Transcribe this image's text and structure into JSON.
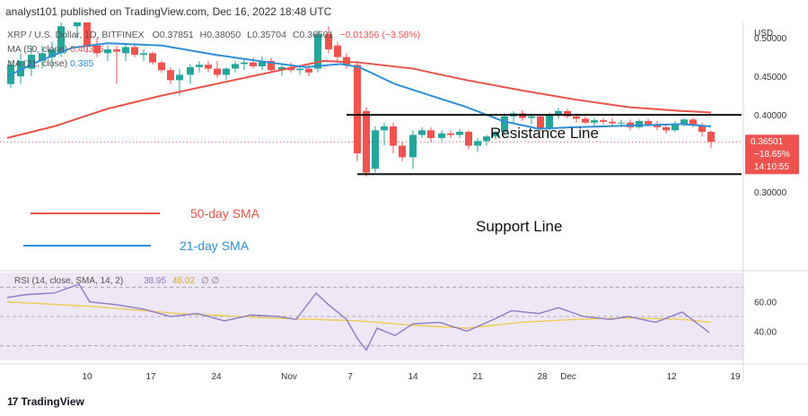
{
  "header": {
    "publish_line": "analyst101 published on TradingView.com, Dec 16, 2022 18:48 UTC"
  },
  "symbol_line": {
    "symbol": "XRP / U.S. Dollar, 1D, BITFINEX",
    "open": "O0.37851",
    "high": "H0.38050",
    "low": "L0.35704",
    "close": "C0.36501",
    "change": "−0.01356 (−3.58%)"
  },
  "ma_lines": [
    {
      "label": "MA (50, close)",
      "value": "0.40335"
    },
    {
      "label": "MA (21, close)",
      "value": "0.385"
    }
  ],
  "price_axis": {
    "currency": "USD",
    "ticks": [
      "0.50000",
      "0.45000",
      "0.40000",
      "0.30000"
    ],
    "last_price": "0.36501",
    "last_change": "−18.65%",
    "countdown": "14:10:55"
  },
  "rsi_panel": {
    "label": "RSI (14, close, SMA, 14, 2)",
    "rsi_value": "38.95",
    "sma_value": "46.02",
    "extra": "∅ ∅",
    "ticks": [
      "60.00",
      "40.00"
    ]
  },
  "time_axis": {
    "ticks": [
      "10",
      "17",
      "24",
      "Nov",
      "7",
      "14",
      "21",
      "28",
      "Dec",
      "12",
      "19"
    ]
  },
  "annotations": {
    "resistance": "Resistance Line",
    "support": "Support Line",
    "sma50_label": "50-day SMA",
    "sma21_label": "21-day SMA"
  },
  "footer": {
    "brand": "TradingView"
  },
  "colors": {
    "up": "#26a69a",
    "down": "#ef5350",
    "sma50": "#e8534a",
    "sma21": "#2e8fd6",
    "rsi": "#8e7cc3",
    "rsi_sma": "#f0c94a",
    "rsi_band": "#ede7f6"
  },
  "chart_data": {
    "type": "candlestick",
    "y_range": [
      0.2,
      0.52
    ],
    "rsi_range": [
      20,
      80
    ],
    "candles": [
      {
        "x": 12,
        "o": 0.44,
        "h": 0.47,
        "l": 0.435,
        "c": 0.465
      },
      {
        "x": 23,
        "o": 0.45,
        "h": 0.48,
        "l": 0.44,
        "c": 0.47
      },
      {
        "x": 35,
        "o": 0.46,
        "h": 0.49,
        "l": 0.45,
        "c": 0.478
      },
      {
        "x": 47,
        "o": 0.47,
        "h": 0.49,
        "l": 0.46,
        "c": 0.48
      },
      {
        "x": 58,
        "o": 0.475,
        "h": 0.495,
        "l": 0.46,
        "c": 0.485
      },
      {
        "x": 68,
        "o": 0.48,
        "h": 0.52,
        "l": 0.475,
        "c": 0.515
      },
      {
        "x": 86,
        "o": 0.515,
        "h": 0.54,
        "l": 0.5,
        "c": 0.53
      },
      {
        "x": 97,
        "o": 0.52,
        "h": 0.53,
        "l": 0.48,
        "c": 0.49
      },
      {
        "x": 108,
        "o": 0.49,
        "h": 0.5,
        "l": 0.475,
        "c": 0.48
      },
      {
        "x": 120,
        "o": 0.48,
        "h": 0.49,
        "l": 0.47,
        "c": 0.485
      },
      {
        "x": 130,
        "o": 0.485,
        "h": 0.49,
        "l": 0.44,
        "c": 0.482
      },
      {
        "x": 140,
        "o": 0.48,
        "h": 0.492,
        "l": 0.47,
        "c": 0.488
      },
      {
        "x": 150,
        "o": 0.488,
        "h": 0.492,
        "l": 0.475,
        "c": 0.478
      },
      {
        "x": 160,
        "o": 0.478,
        "h": 0.485,
        "l": 0.47,
        "c": 0.48
      },
      {
        "x": 170,
        "o": 0.48,
        "h": 0.482,
        "l": 0.465,
        "c": 0.468
      },
      {
        "x": 180,
        "o": 0.468,
        "h": 0.47,
        "l": 0.455,
        "c": 0.458
      },
      {
        "x": 190,
        "o": 0.458,
        "h": 0.462,
        "l": 0.44,
        "c": 0.445
      },
      {
        "x": 200,
        "o": 0.445,
        "h": 0.46,
        "l": 0.425,
        "c": 0.452
      },
      {
        "x": 212,
        "o": 0.452,
        "h": 0.466,
        "l": 0.44,
        "c": 0.462
      },
      {
        "x": 222,
        "o": 0.462,
        "h": 0.47,
        "l": 0.455,
        "c": 0.465
      },
      {
        "x": 232,
        "o": 0.465,
        "h": 0.47,
        "l": 0.455,
        "c": 0.46
      },
      {
        "x": 242,
        "o": 0.46,
        "h": 0.47,
        "l": 0.448,
        "c": 0.452
      },
      {
        "x": 252,
        "o": 0.452,
        "h": 0.462,
        "l": 0.445,
        "c": 0.46
      },
      {
        "x": 262,
        "o": 0.46,
        "h": 0.47,
        "l": 0.455,
        "c": 0.466
      },
      {
        "x": 272,
        "o": 0.466,
        "h": 0.472,
        "l": 0.458,
        "c": 0.468
      },
      {
        "x": 282,
        "o": 0.468,
        "h": 0.474,
        "l": 0.46,
        "c": 0.463
      },
      {
        "x": 292,
        "o": 0.463,
        "h": 0.476,
        "l": 0.458,
        "c": 0.47
      },
      {
        "x": 302,
        "o": 0.47,
        "h": 0.474,
        "l": 0.455,
        "c": 0.458
      },
      {
        "x": 314,
        "o": 0.458,
        "h": 0.465,
        "l": 0.45,
        "c": 0.462
      },
      {
        "x": 324,
        "o": 0.462,
        "h": 0.468,
        "l": 0.455,
        "c": 0.458
      },
      {
        "x": 334,
        "o": 0.458,
        "h": 0.465,
        "l": 0.452,
        "c": 0.46
      },
      {
        "x": 344,
        "o": 0.46,
        "h": 0.464,
        "l": 0.45,
        "c": 0.455
      },
      {
        "x": 354,
        "o": 0.46,
        "h": 0.51,
        "l": 0.455,
        "c": 0.505
      },
      {
        "x": 366,
        "o": 0.505,
        "h": 0.515,
        "l": 0.48,
        "c": 0.485
      },
      {
        "x": 376,
        "o": 0.49,
        "h": 0.495,
        "l": 0.47,
        "c": 0.475
      },
      {
        "x": 386,
        "o": 0.475,
        "h": 0.48,
        "l": 0.46,
        "c": 0.465
      },
      {
        "x": 398,
        "o": 0.465,
        "h": 0.47,
        "l": 0.34,
        "c": 0.35
      },
      {
        "x": 408,
        "o": 0.405,
        "h": 0.41,
        "l": 0.32,
        "c": 0.325
      },
      {
        "x": 418,
        "o": 0.33,
        "h": 0.385,
        "l": 0.325,
        "c": 0.38
      },
      {
        "x": 428,
        "o": 0.38,
        "h": 0.39,
        "l": 0.36,
        "c": 0.385
      },
      {
        "x": 438,
        "o": 0.385,
        "h": 0.39,
        "l": 0.35,
        "c": 0.36
      },
      {
        "x": 448,
        "o": 0.36,
        "h": 0.365,
        "l": 0.34,
        "c": 0.345
      },
      {
        "x": 460,
        "o": 0.345,
        "h": 0.38,
        "l": 0.33,
        "c": 0.374
      },
      {
        "x": 470,
        "o": 0.374,
        "h": 0.384,
        "l": 0.37,
        "c": 0.38
      },
      {
        "x": 480,
        "o": 0.38,
        "h": 0.384,
        "l": 0.365,
        "c": 0.37
      },
      {
        "x": 492,
        "o": 0.37,
        "h": 0.38,
        "l": 0.366,
        "c": 0.376
      },
      {
        "x": 502,
        "o": 0.376,
        "h": 0.38,
        "l": 0.37,
        "c": 0.374
      },
      {
        "x": 512,
        "o": 0.374,
        "h": 0.382,
        "l": 0.37,
        "c": 0.378
      },
      {
        "x": 522,
        "o": 0.378,
        "h": 0.38,
        "l": 0.355,
        "c": 0.36
      },
      {
        "x": 532,
        "o": 0.36,
        "h": 0.37,
        "l": 0.352,
        "c": 0.366
      },
      {
        "x": 542,
        "o": 0.366,
        "h": 0.374,
        "l": 0.36,
        "c": 0.372
      },
      {
        "x": 552,
        "o": 0.372,
        "h": 0.38,
        "l": 0.368,
        "c": 0.378
      },
      {
        "x": 562,
        "o": 0.378,
        "h": 0.402,
        "l": 0.374,
        "c": 0.398
      },
      {
        "x": 572,
        "o": 0.398,
        "h": 0.405,
        "l": 0.39,
        "c": 0.402
      },
      {
        "x": 582,
        "o": 0.402,
        "h": 0.406,
        "l": 0.392,
        "c": 0.396
      },
      {
        "x": 592,
        "o": 0.396,
        "h": 0.402,
        "l": 0.388,
        "c": 0.398
      },
      {
        "x": 602,
        "o": 0.398,
        "h": 0.4,
        "l": 0.378,
        "c": 0.382
      },
      {
        "x": 612,
        "o": 0.382,
        "h": 0.403,
        "l": 0.378,
        "c": 0.4
      },
      {
        "x": 622,
        "o": 0.4,
        "h": 0.409,
        "l": 0.395,
        "c": 0.405
      },
      {
        "x": 632,
        "o": 0.405,
        "h": 0.408,
        "l": 0.395,
        "c": 0.398
      },
      {
        "x": 642,
        "o": 0.398,
        "h": 0.402,
        "l": 0.39,
        "c": 0.395
      },
      {
        "x": 652,
        "o": 0.395,
        "h": 0.398,
        "l": 0.388,
        "c": 0.39
      },
      {
        "x": 662,
        "o": 0.39,
        "h": 0.396,
        "l": 0.386,
        "c": 0.393
      },
      {
        "x": 672,
        "o": 0.393,
        "h": 0.396,
        "l": 0.388,
        "c": 0.391
      },
      {
        "x": 682,
        "o": 0.391,
        "h": 0.396,
        "l": 0.386,
        "c": 0.389
      },
      {
        "x": 692,
        "o": 0.389,
        "h": 0.394,
        "l": 0.384,
        "c": 0.39
      },
      {
        "x": 702,
        "o": 0.39,
        "h": 0.394,
        "l": 0.38,
        "c": 0.384
      },
      {
        "x": 712,
        "o": 0.384,
        "h": 0.394,
        "l": 0.382,
        "c": 0.392
      },
      {
        "x": 722,
        "o": 0.392,
        "h": 0.395,
        "l": 0.385,
        "c": 0.388
      },
      {
        "x": 732,
        "o": 0.388,
        "h": 0.392,
        "l": 0.38,
        "c": 0.384
      },
      {
        "x": 742,
        "o": 0.384,
        "h": 0.386,
        "l": 0.376,
        "c": 0.38
      },
      {
        "x": 752,
        "o": 0.38,
        "h": 0.392,
        "l": 0.378,
        "c": 0.388
      },
      {
        "x": 762,
        "o": 0.388,
        "h": 0.396,
        "l": 0.385,
        "c": 0.394
      },
      {
        "x": 772,
        "o": 0.394,
        "h": 0.396,
        "l": 0.384,
        "c": 0.386
      },
      {
        "x": 782,
        "o": 0.386,
        "h": 0.39,
        "l": 0.372,
        "c": 0.378
      },
      {
        "x": 792,
        "o": 0.378,
        "h": 0.38,
        "l": 0.357,
        "c": 0.365
      }
    ],
    "sma50": [
      [
        8,
        0.37
      ],
      [
        60,
        0.385
      ],
      [
        120,
        0.408
      ],
      [
        180,
        0.425
      ],
      [
        240,
        0.44
      ],
      [
        300,
        0.455
      ],
      [
        360,
        0.47
      ],
      [
        400,
        0.468
      ],
      [
        460,
        0.46
      ],
      [
        520,
        0.445
      ],
      [
        580,
        0.432
      ],
      [
        640,
        0.42
      ],
      [
        700,
        0.41
      ],
      [
        760,
        0.405
      ],
      [
        792,
        0.403
      ]
    ],
    "sma21": [
      [
        8,
        0.45
      ],
      [
        40,
        0.468
      ],
      [
        80,
        0.487
      ],
      [
        120,
        0.493
      ],
      [
        180,
        0.49
      ],
      [
        240,
        0.478
      ],
      [
        300,
        0.468
      ],
      [
        340,
        0.462
      ],
      [
        380,
        0.466
      ],
      [
        400,
        0.462
      ],
      [
        440,
        0.44
      ],
      [
        480,
        0.425
      ],
      [
        520,
        0.41
      ],
      [
        560,
        0.392
      ],
      [
        600,
        0.382
      ],
      [
        640,
        0.384
      ],
      [
        700,
        0.386
      ],
      [
        760,
        0.388
      ],
      [
        792,
        0.385
      ]
    ],
    "resistance_price": 0.4,
    "support_price": 0.323,
    "rsi": [
      [
        8,
        63
      ],
      [
        30,
        65
      ],
      [
        60,
        66
      ],
      [
        88,
        72
      ],
      [
        100,
        60
      ],
      [
        130,
        58
      ],
      [
        160,
        55
      ],
      [
        190,
        50
      ],
      [
        220,
        52
      ],
      [
        250,
        47
      ],
      [
        280,
        51
      ],
      [
        310,
        50
      ],
      [
        330,
        48
      ],
      [
        352,
        66
      ],
      [
        366,
        58
      ],
      [
        386,
        48
      ],
      [
        398,
        35
      ],
      [
        408,
        27
      ],
      [
        420,
        42
      ],
      [
        440,
        37
      ],
      [
        460,
        45
      ],
      [
        490,
        46
      ],
      [
        520,
        40
      ],
      [
        550,
        48
      ],
      [
        570,
        54
      ],
      [
        600,
        52
      ],
      [
        622,
        56
      ],
      [
        650,
        50
      ],
      [
        680,
        48
      ],
      [
        700,
        50
      ],
      [
        730,
        46
      ],
      [
        760,
        53
      ],
      [
        790,
        39
      ]
    ],
    "rsi_sma": [
      [
        8,
        60
      ],
      [
        100,
        57
      ],
      [
        200,
        52
      ],
      [
        300,
        49
      ],
      [
        400,
        47
      ],
      [
        460,
        44
      ],
      [
        520,
        42
      ],
      [
        580,
        46
      ],
      [
        640,
        48
      ],
      [
        700,
        49
      ],
      [
        760,
        48
      ],
      [
        792,
        46
      ]
    ]
  }
}
